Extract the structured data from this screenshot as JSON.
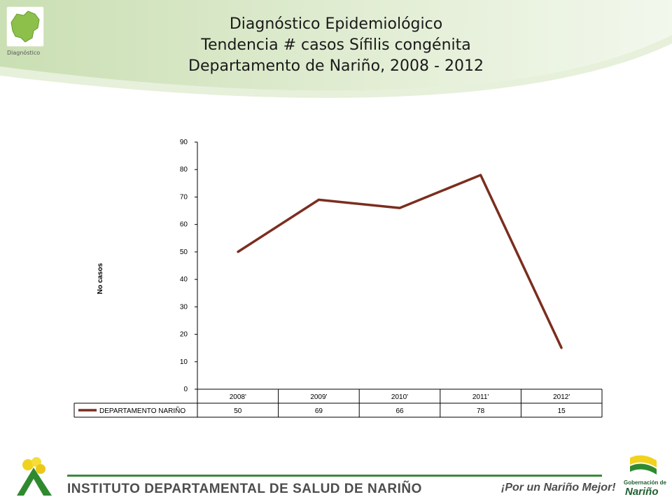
{
  "header": {
    "title_line1": "Diagnóstico Epidemiológico",
    "title_line2": "Tendencia # casos Sífilis congénita",
    "title_line3": "Departamento de Nariño,  2008 - 2012",
    "logo_caption": "Diagnóstico"
  },
  "footer": {
    "institute": "INSTITUTO DEPARTAMENTAL DE SALUD DE NARIÑO",
    "slogan": "¡Por un Nariño Mejor!",
    "gob_top": "Gobernación de",
    "gob_bottom": "Nariño"
  },
  "colors": {
    "series_line": "#7a2e1f",
    "accent_green": "#3b8a3b"
  },
  "chart_data": {
    "type": "line",
    "categories": [
      "2008'",
      "2009'",
      "2010'",
      "2011'",
      "2012'"
    ],
    "series": [
      {
        "name": "DEPARTAMENTO NARIÑO",
        "values": [
          50,
          69,
          66,
          78,
          15
        ]
      }
    ],
    "ylabel": "No casos",
    "yticks": [
      0,
      10,
      20,
      30,
      40,
      50,
      60,
      70,
      80,
      90
    ],
    "ylim": [
      0,
      90
    ],
    "data_table": true,
    "grid": false
  }
}
